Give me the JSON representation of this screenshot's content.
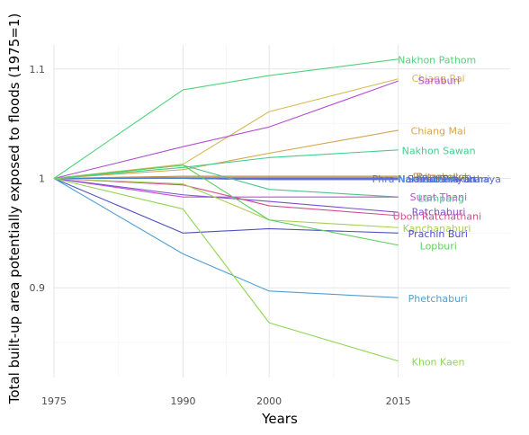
{
  "chart_data": {
    "type": "line",
    "title": "",
    "xlabel": "Years",
    "ylabel": "Total built-up area potentially exposed to floods (1975=1)",
    "x": [
      1975,
      1990,
      2000,
      2015
    ],
    "x_ticks": [
      "1975",
      "1990",
      "2000",
      "2015"
    ],
    "y_ticks": [
      {
        "value": 0.9,
        "label": "0.9"
      },
      {
        "value": 1.0,
        "label": "1"
      },
      {
        "value": 1.1,
        "label": "1.1"
      }
    ],
    "xlim": [
      1975,
      2028
    ],
    "ylim": [
      0.818,
      1.122
    ],
    "grid": true,
    "legend": "none",
    "series": [
      {
        "name": "Nakhon Pathom",
        "color": "#4ed37a",
        "values": [
          1.0,
          1.081,
          1.094,
          1.109
        ]
      },
      {
        "name": "Chiang Rai",
        "color": "#d7b957",
        "values": [
          1.0,
          1.013,
          1.061,
          1.091
        ]
      },
      {
        "name": "Saraburi",
        "color": "#b44fd5",
        "values": [
          1.0,
          1.029,
          1.047,
          1.089
        ]
      },
      {
        "name": "Chiang Mai",
        "color": "#d8a34c",
        "values": [
          1.0,
          1.008,
          1.023,
          1.044
        ]
      },
      {
        "name": "Nakhon Sawan",
        "color": "#3fcf8e",
        "values": [
          1.0,
          1.01,
          1.019,
          1.026
        ]
      },
      {
        "name": "Phitsanulok",
        "color": "#c98e4a",
        "values": [
          1.0,
          1.002,
          1.002,
          1.002
        ]
      },
      {
        "name": "Bangkok",
        "color": "#9a8f5a",
        "values": [
          1.0,
          1.001,
          1.001,
          1.001
        ]
      },
      {
        "name": "Phra Nakhon Si Ayutthaya",
        "color": "#5b6cd6",
        "values": [
          1.0,
          1.0,
          1.0,
          1.0
        ]
      },
      {
        "name": "Nonthaburi",
        "color": "#4f9bd6",
        "values": [
          1.0,
          1.0,
          0.999,
          0.999
        ]
      },
      {
        "name": "Samut Prakan",
        "color": "#5a5ac9",
        "values": [
          1.0,
          1.0,
          0.999,
          0.999
        ]
      },
      {
        "name": "Pathum Thani",
        "color": "#4a7ed4",
        "values": [
          1.0,
          1.0,
          0.999,
          0.999
        ]
      },
      {
        "name": "Lampang",
        "color": "#4ec28f",
        "values": [
          1.0,
          1.012,
          0.99,
          0.983
        ]
      },
      {
        "name": "Surat Thani",
        "color": "#c34fcf",
        "values": [
          1.0,
          0.983,
          0.983,
          0.983
        ]
      },
      {
        "name": "Ratchaburi",
        "color": "#7a4fd0",
        "values": [
          1.0,
          0.985,
          0.979,
          0.969
        ]
      },
      {
        "name": "Ubon Ratchathani",
        "color": "#d14f8e",
        "values": [
          1.0,
          0.994,
          0.975,
          0.966
        ]
      },
      {
        "name": "Kanchanaburi",
        "color": "#a7cf4e",
        "values": [
          1.0,
          0.995,
          0.962,
          0.955
        ]
      },
      {
        "name": "Prachin Buri",
        "color": "#4f4fc2",
        "values": [
          1.0,
          0.95,
          0.954,
          0.95
        ]
      },
      {
        "name": "Lopburi",
        "color": "#5ccf5c",
        "values": [
          1.0,
          1.012,
          0.962,
          0.939
        ]
      },
      {
        "name": "Phetchaburi",
        "color": "#4f9fd2",
        "values": [
          1.0,
          0.931,
          0.897,
          0.891
        ]
      },
      {
        "name": "Khon Kaen",
        "color": "#8ed64f",
        "values": [
          1.0,
          0.972,
          0.868,
          0.833
        ]
      }
    ],
    "labels": [
      {
        "series": "Nakhon Pathom",
        "text": "Nakhon Pathom",
        "y": 1.1085
      },
      {
        "series": "Chiang Rai",
        "text": "Chiang Rai",
        "y": 1.0915
      },
      {
        "series": "Saraburi",
        "text": "Saraburi",
        "y": 1.0895
      },
      {
        "series": "Chiang Mai",
        "text": "Chiang Mai",
        "y": 1.0435
      },
      {
        "series": "Nakhon Sawan",
        "text": "Nakhon Sawan",
        "y": 1.0255
      },
      {
        "series": "Phitsanulok",
        "text": "Phitsanulok",
        "y": 1.0015
      },
      {
        "series": "Bangkok",
        "text": "Bangkok",
        "y": 1.0015
      },
      {
        "series": "Phra Nakhon Si Ayutthaya",
        "text": "Phra Nakhon Si Ayutthaya",
        "y": 0.9995
      },
      {
        "series": "Nonthaburi",
        "text": "Nonthaburi",
        "y": 0.9995
      },
      {
        "series": "Samut Prakan",
        "text": "Samut Prakan",
        "y": 0.9995
      },
      {
        "series": "Pathum Thani",
        "text": "Pathum Thani",
        "y": 0.9995
      },
      {
        "series": "Surat Thani",
        "text": "Surat Thani",
        "y": 0.983
      },
      {
        "series": "Lampang",
        "text": "Lampang",
        "y": 0.982
      },
      {
        "series": "Ratchaburi",
        "text": "Ratchaburi",
        "y": 0.9695
      },
      {
        "series": "Ubon Ratchathani",
        "text": "Ubon Ratchathani",
        "y": 0.9655
      },
      {
        "series": "Kanchanaburi",
        "text": "Kanchanaburi",
        "y": 0.9545
      },
      {
        "series": "Prachin Buri",
        "text": "Prachin Buri",
        "y": 0.9495
      },
      {
        "series": "Lopburi",
        "text": "Lopburi",
        "y": 0.9385
      },
      {
        "series": "Phetchaburi",
        "text": "Phetchaburi",
        "y": 0.8905
      },
      {
        "series": "Khon Kaen",
        "text": "Khon Kaen",
        "y": 0.8325
      }
    ]
  }
}
